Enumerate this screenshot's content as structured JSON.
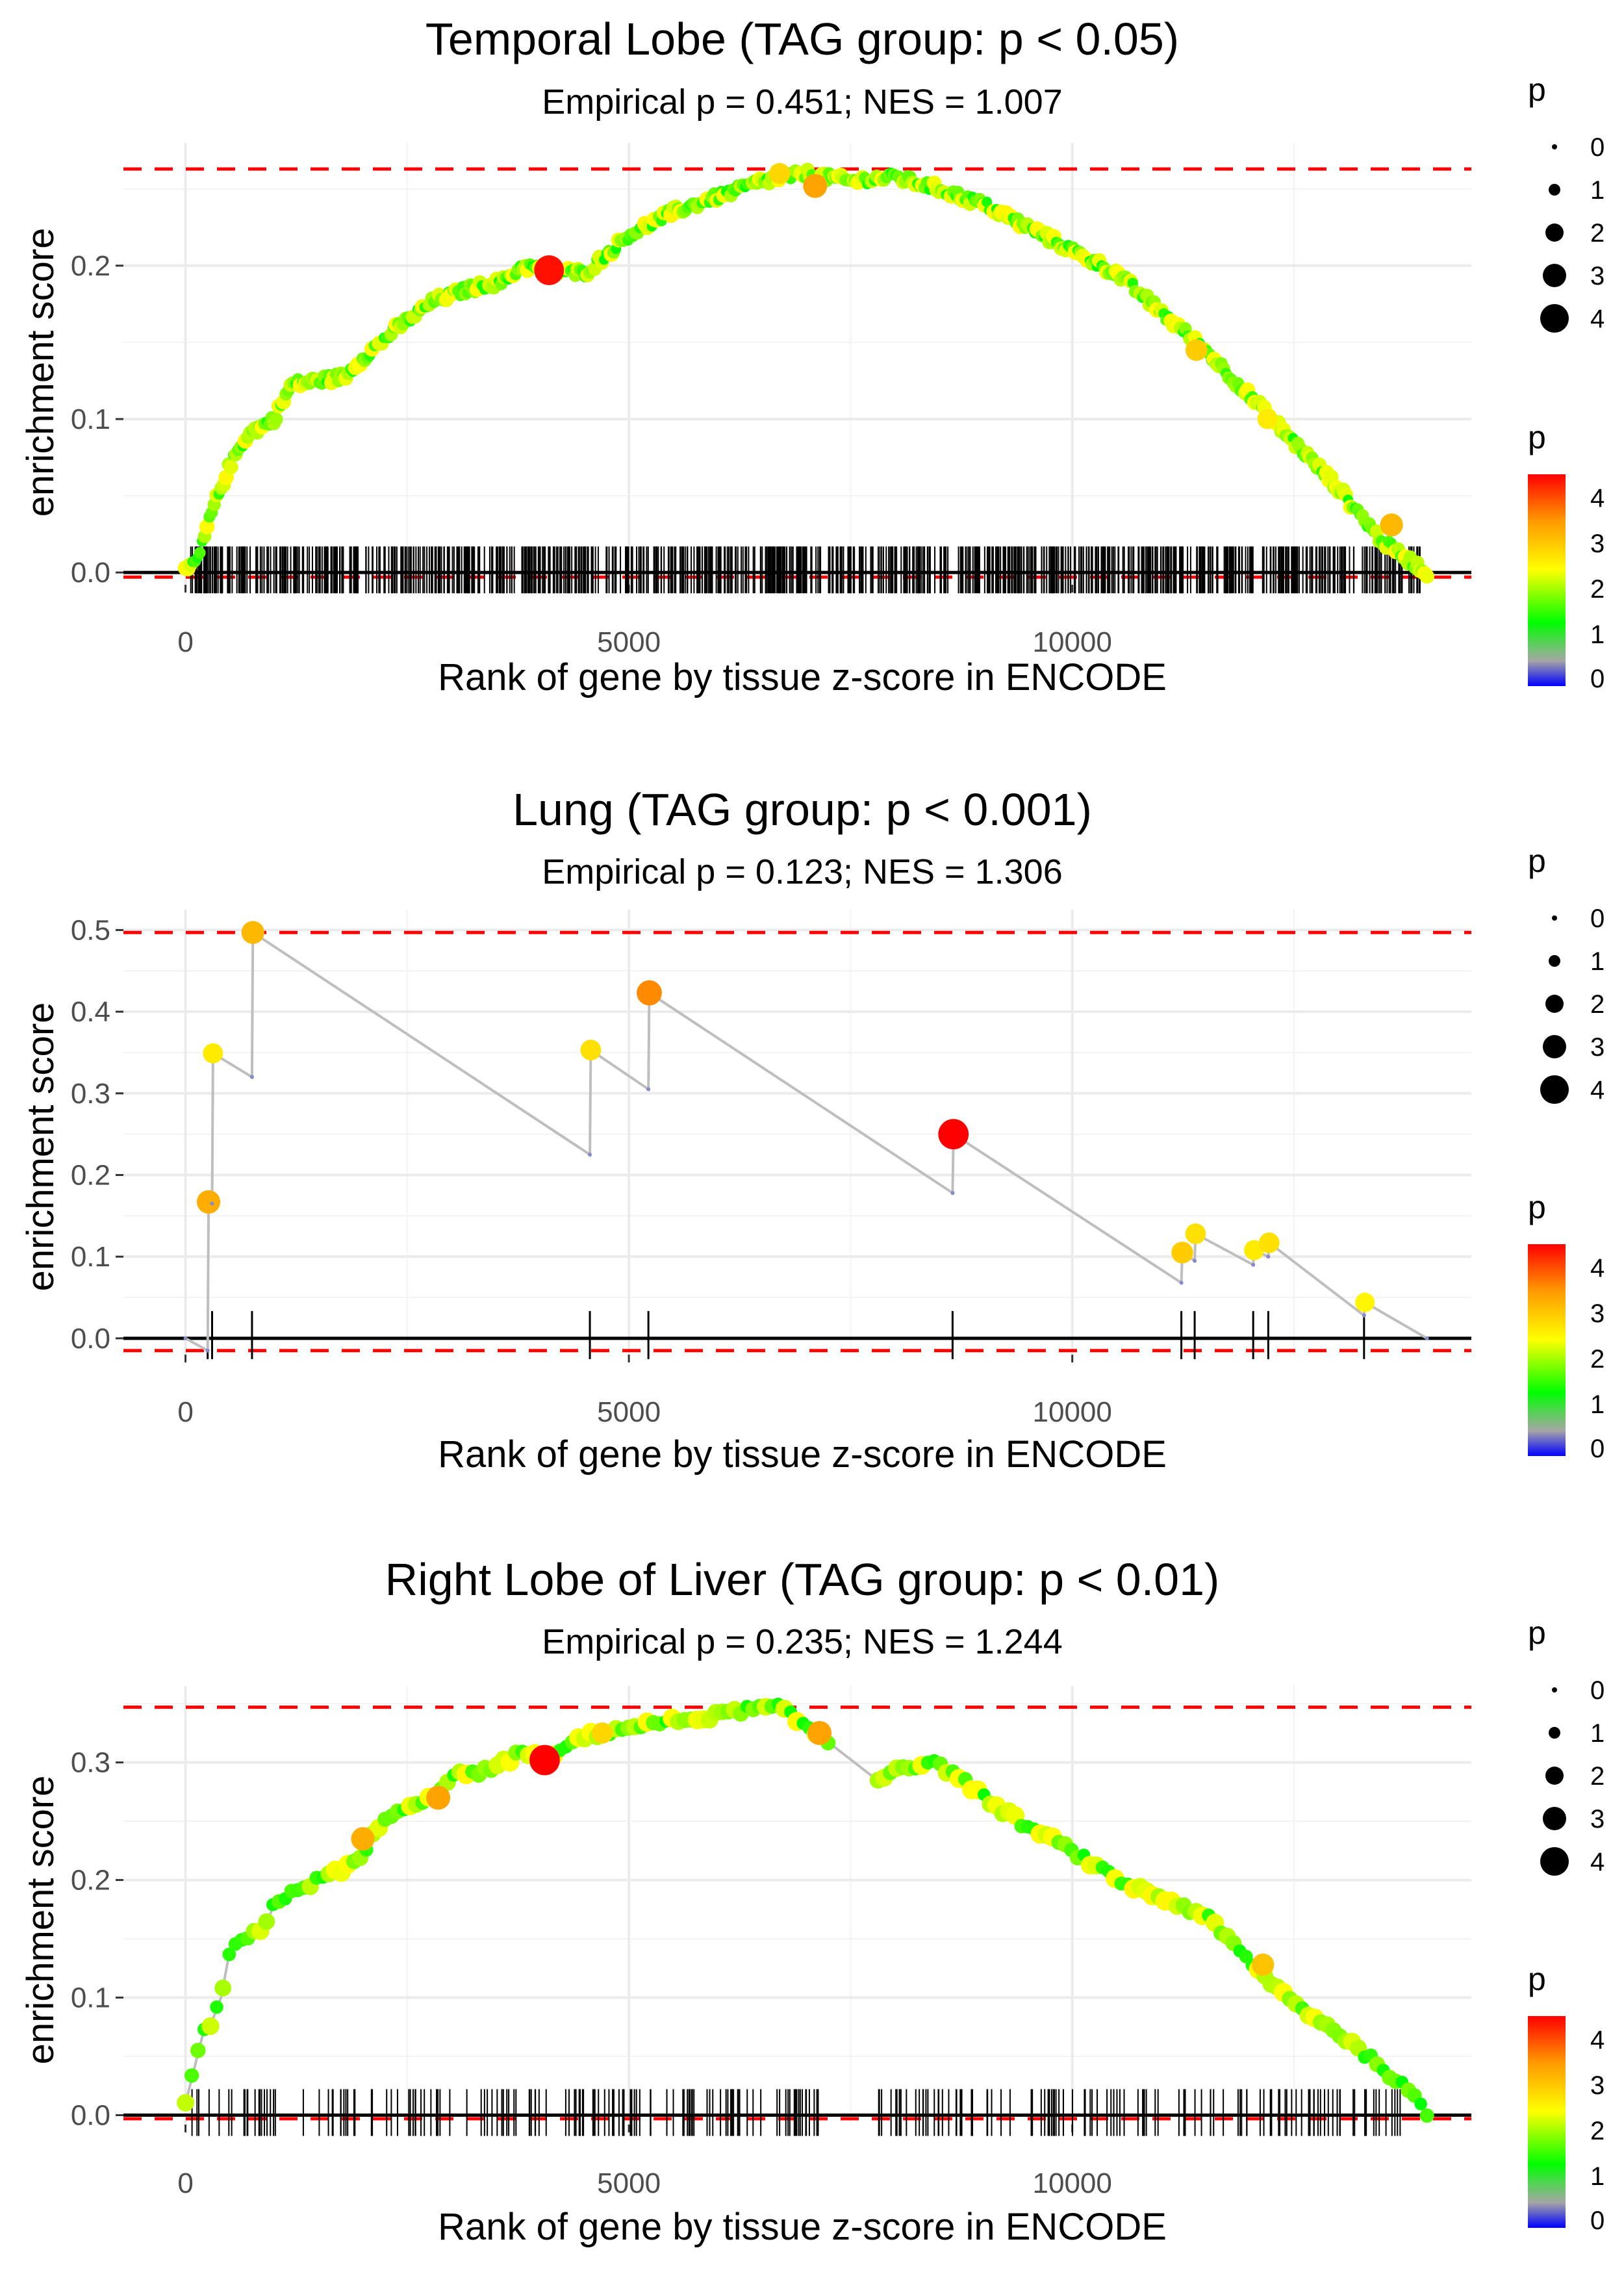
{
  "chart_data": [
    {
      "type": "line",
      "title": "Temporal Lobe (TAG group: p < 0.05)",
      "subtitle": "Empirical p = 0.451; NES = 1.007",
      "xlabel": "Rank of gene by tissue z-score in ENCODE",
      "ylabel": "enrichment score",
      "xlim": [
        -700,
        14500
      ],
      "ylim": [
        -0.008,
        0.28
      ],
      "xticks": [
        0,
        5000,
        10000
      ],
      "xtick_labels": [
        "0",
        "5000",
        "10000"
      ],
      "yticks": [
        0.0,
        0.1,
        0.2
      ],
      "ytick_labels": [
        "0.0",
        "0.1",
        "0.2"
      ],
      "max_es": 0.263,
      "min_es": -0.003,
      "n_hits": 900,
      "curve": [
        [
          0,
          0
        ],
        [
          150,
          0.01
        ],
        [
          300,
          0.04
        ],
        [
          500,
          0.07
        ],
        [
          700,
          0.09
        ],
        [
          1000,
          0.1
        ],
        [
          1200,
          0.123
        ],
        [
          1500,
          0.125
        ],
        [
          1800,
          0.128
        ],
        [
          2000,
          0.14
        ],
        [
          2400,
          0.16
        ],
        [
          2800,
          0.177
        ],
        [
          3200,
          0.185
        ],
        [
          3600,
          0.19
        ],
        [
          3800,
          0.2
        ],
        [
          4100,
          0.197
        ],
        [
          4500,
          0.195
        ],
        [
          5000,
          0.22
        ],
        [
          5500,
          0.235
        ],
        [
          6000,
          0.245
        ],
        [
          6500,
          0.255
        ],
        [
          7000,
          0.26
        ],
        [
          7500,
          0.255
        ],
        [
          8000,
          0.258
        ],
        [
          8500,
          0.25
        ],
        [
          9000,
          0.24
        ],
        [
          9500,
          0.225
        ],
        [
          10000,
          0.21
        ],
        [
          10500,
          0.195
        ],
        [
          11000,
          0.17
        ],
        [
          11500,
          0.145
        ],
        [
          12000,
          0.115
        ],
        [
          12500,
          0.085
        ],
        [
          13000,
          0.055
        ],
        [
          13500,
          0.02
        ],
        [
          14000,
          0
        ]
      ],
      "highlights": [
        {
          "rank": 4100,
          "es": 0.197,
          "p": 4.3
        },
        {
          "rank": 7100,
          "es": 0.252,
          "p": 3.3
        },
        {
          "rank": 6700,
          "es": 0.26,
          "p": 2.8
        },
        {
          "rank": 13600,
          "es": 0.031,
          "p": 3.1
        },
        {
          "rank": 11400,
          "es": 0.145,
          "p": 2.9
        },
        {
          "rank": 12200,
          "es": 0.1,
          "p": 2.6
        }
      ],
      "legend": {
        "size_title": "p",
        "size_labels": [
          "0",
          "1",
          "2",
          "3",
          "4"
        ],
        "color_title": "p",
        "color_labels": [
          "4",
          "3",
          "2",
          "1",
          "0"
        ]
      }
    },
    {
      "type": "line",
      "title": "Lung (TAG group: p < 0.001)",
      "subtitle": "Empirical p = 0.123; NES = 1.306",
      "xlabel": "Rank of gene by tissue z-score in ENCODE",
      "ylabel": "enrichment score",
      "xlim": [
        -700,
        14500
      ],
      "ylim": [
        -0.02,
        0.525
      ],
      "xticks": [
        0,
        5000,
        10000
      ],
      "xtick_labels": [
        "0",
        "5000",
        "10000"
      ],
      "yticks": [
        0.0,
        0.1,
        0.2,
        0.3,
        0.4,
        0.5
      ],
      "ytick_labels": [
        "0.0",
        "0.1",
        "0.2",
        "0.3",
        "0.4",
        "0.5"
      ],
      "max_es": 0.497,
      "min_es": -0.015,
      "points": [
        {
          "rank": 0,
          "es": 0,
          "p": 0
        },
        {
          "rank": 250,
          "es": -0.015,
          "p": 0
        },
        {
          "rank": 260,
          "es": 0.167,
          "p": 3.2
        },
        {
          "rank": 300,
          "es": 0.165,
          "p": 0
        },
        {
          "rank": 310,
          "es": 0.349,
          "p": 2.6
        },
        {
          "rank": 750,
          "es": 0.32,
          "p": 0
        },
        {
          "rank": 760,
          "es": 0.497,
          "p": 3.1
        },
        {
          "rank": 4560,
          "es": 0.225,
          "p": 0
        },
        {
          "rank": 4570,
          "es": 0.353,
          "p": 2.7
        },
        {
          "rank": 5220,
          "es": 0.305,
          "p": 0
        },
        {
          "rank": 5230,
          "es": 0.423,
          "p": 3.5
        },
        {
          "rank": 8650,
          "es": 0.178,
          "p": 0
        },
        {
          "rank": 8660,
          "es": 0.25,
          "p": 4.4
        },
        {
          "rank": 11230,
          "es": 0.068,
          "p": 0
        },
        {
          "rank": 11240,
          "es": 0.105,
          "p": 2.9
        },
        {
          "rank": 11380,
          "es": 0.095,
          "p": 0
        },
        {
          "rank": 11390,
          "es": 0.128,
          "p": 2.7
        },
        {
          "rank": 12040,
          "es": 0.09,
          "p": 0
        },
        {
          "rank": 12050,
          "es": 0.108,
          "p": 2.6
        },
        {
          "rank": 12210,
          "es": 0.1,
          "p": 0
        },
        {
          "rank": 12220,
          "es": 0.117,
          "p": 2.7
        },
        {
          "rank": 13290,
          "es": 0.028,
          "p": 0
        },
        {
          "rank": 13300,
          "es": 0.044,
          "p": 2.5
        },
        {
          "rank": 14000,
          "es": 0,
          "p": 0
        }
      ],
      "hit_ranks": [
        250,
        300,
        750,
        4560,
        5220,
        8650,
        11230,
        11380,
        12040,
        12210,
        13290
      ],
      "legend": {
        "size_title": "p",
        "size_labels": [
          "0",
          "1",
          "2",
          "3",
          "4"
        ],
        "color_title": "p",
        "color_labels": [
          "4",
          "3",
          "2",
          "1",
          "0"
        ]
      }
    },
    {
      "type": "line",
      "title": "Right Lobe of Liver (TAG group: p < 0.01)",
      "subtitle": "Empirical p = 0.235; NES = 1.244",
      "xlabel": "Rank of gene by tissue z-score in ENCODE",
      "ylabel": "enrichment score",
      "xlim": [
        -700,
        14500
      ],
      "ylim": [
        -0.008,
        0.365
      ],
      "xticks": [
        0,
        5000,
        10000
      ],
      "xtick_labels": [
        "0",
        "5000",
        "10000"
      ],
      "yticks": [
        0.0,
        0.1,
        0.2,
        0.3
      ],
      "ytick_labels": [
        "0.0",
        "0.1",
        "0.2",
        "0.3"
      ],
      "max_es": 0.347,
      "min_es": -0.003,
      "n_hits": 260,
      "curve": [
        [
          0,
          0.01
        ],
        [
          100,
          0.04
        ],
        [
          200,
          0.07
        ],
        [
          300,
          0.08
        ],
        [
          400,
          0.1
        ],
        [
          500,
          0.14
        ],
        [
          700,
          0.15
        ],
        [
          900,
          0.16
        ],
        [
          1000,
          0.18
        ],
        [
          1200,
          0.19
        ],
        [
          1500,
          0.2
        ],
        [
          1800,
          0.21
        ],
        [
          2000,
          0.22
        ],
        [
          2200,
          0.25
        ],
        [
          2500,
          0.26
        ],
        [
          2800,
          0.27
        ],
        [
          3000,
          0.29
        ],
        [
          3300,
          0.29
        ],
        [
          3600,
          0.3
        ],
        [
          3800,
          0.31
        ],
        [
          4100,
          0.3
        ],
        [
          4400,
          0.32
        ],
        [
          4700,
          0.325
        ],
        [
          5000,
          0.33
        ],
        [
          5500,
          0.335
        ],
        [
          6000,
          0.34
        ],
        [
          6300,
          0.345
        ],
        [
          6700,
          0.347
        ],
        [
          7000,
          0.33
        ],
        [
          7200,
          0.32
        ],
        [
          7800,
          0.285
        ],
        [
          8000,
          0.295
        ],
        [
          8400,
          0.3
        ],
        [
          8700,
          0.29
        ],
        [
          9000,
          0.27
        ],
        [
          9500,
          0.245
        ],
        [
          10000,
          0.225
        ],
        [
          10500,
          0.2
        ],
        [
          11000,
          0.185
        ],
        [
          11500,
          0.17
        ],
        [
          12000,
          0.13
        ],
        [
          12500,
          0.095
        ],
        [
          13000,
          0.07
        ],
        [
          13500,
          0.04
        ],
        [
          13800,
          0.02
        ],
        [
          14000,
          0
        ]
      ],
      "highlights": [
        {
          "rank": 4050,
          "es": 0.302,
          "p": 4.4
        },
        {
          "rank": 7150,
          "es": 0.325,
          "p": 3.3
        },
        {
          "rank": 2850,
          "es": 0.27,
          "p": 3.3
        },
        {
          "rank": 2000,
          "es": 0.235,
          "p": 3.2
        },
        {
          "rank": 4700,
          "es": 0.325,
          "p": 2.8
        },
        {
          "rank": 12150,
          "es": 0.128,
          "p": 3.0
        }
      ],
      "legend": {
        "size_title": "p",
        "size_labels": [
          "0",
          "1",
          "2",
          "3",
          "4"
        ],
        "color_title": "p",
        "color_labels": [
          "4",
          "3",
          "2",
          "1",
          "0"
        ]
      }
    }
  ]
}
